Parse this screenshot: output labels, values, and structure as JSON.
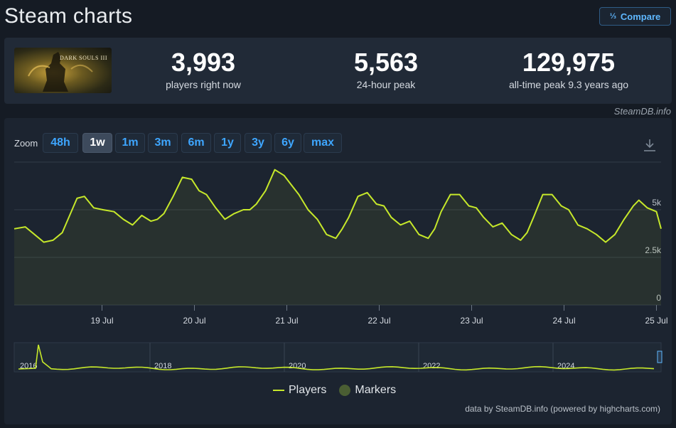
{
  "header": {
    "title": "Steam charts",
    "compare_label": "Compare",
    "compare_icon": "fraction-icon"
  },
  "stats": {
    "game_title": "DARK SOULS III",
    "current": {
      "value": "3,993",
      "label": "players right now"
    },
    "peak_24h": {
      "value": "5,563",
      "label": "24-hour peak"
    },
    "all_time": {
      "value": "129,975",
      "label": "all-time peak 9.3 years ago"
    }
  },
  "credit": "SteamDB.info",
  "zoom": {
    "label": "Zoom",
    "options": [
      "48h",
      "1w",
      "1m",
      "3m",
      "6m",
      "1y",
      "3y",
      "6y",
      "max"
    ],
    "active": "1w"
  },
  "legend": {
    "players": "Players",
    "markers": "Markers"
  },
  "data_credit": "data by SteamDB.info (powered by highcharts.com)",
  "chart_data": {
    "type": "line",
    "title": "",
    "y_ticks": [
      {
        "value": 0,
        "label": "0"
      },
      {
        "value": 2500,
        "label": "2.5k"
      },
      {
        "value": 5000,
        "label": "5k"
      }
    ],
    "ylim": [
      0,
      7500
    ],
    "x_ticks": [
      "19 Jul",
      "20 Jul",
      "21 Jul",
      "22 Jul",
      "23 Jul",
      "24 Jul",
      "25 Jul"
    ],
    "series": [
      {
        "name": "Players",
        "color": "#c6e82a",
        "x_days": [
          0.0,
          0.12,
          0.22,
          0.32,
          0.42,
          0.52,
          0.6,
          0.68,
          0.76,
          0.86,
          0.96,
          1.08,
          1.18,
          1.28,
          1.38,
          1.48,
          1.55,
          1.62,
          1.72,
          1.82,
          1.92,
          2.0,
          2.08,
          2.18,
          2.28,
          2.38,
          2.48,
          2.55,
          2.62,
          2.72,
          2.82,
          2.92,
          3.0,
          3.08,
          3.18,
          3.28,
          3.38,
          3.48,
          3.55,
          3.62,
          3.72,
          3.82,
          3.92,
          4.0,
          4.08,
          4.18,
          4.28,
          4.38,
          4.48,
          4.55,
          4.62,
          4.72,
          4.82,
          4.92,
          5.0,
          5.08,
          5.18,
          5.28,
          5.38,
          5.48,
          5.55,
          5.62,
          5.72,
          5.82,
          5.92,
          6.0,
          6.1,
          6.2,
          6.3,
          6.4,
          6.5,
          6.6,
          6.7,
          6.76,
          6.85,
          6.95,
          7.0
        ],
        "values": [
          4000,
          4100,
          3700,
          3300,
          3400,
          3800,
          4700,
          5600,
          5700,
          5100,
          5000,
          4900,
          4500,
          4200,
          4700,
          4400,
          4500,
          4800,
          5700,
          6700,
          6600,
          6000,
          5800,
          5100,
          4500,
          4800,
          5000,
          5000,
          5300,
          6000,
          7100,
          6800,
          6300,
          5800,
          5000,
          4500,
          3700,
          3500,
          4000,
          4600,
          5700,
          5900,
          5300,
          5200,
          4600,
          4200,
          4400,
          3700,
          3500,
          4000,
          4900,
          5800,
          5800,
          5200,
          5100,
          4600,
          4100,
          4300,
          3700,
          3400,
          3800,
          4600,
          5800,
          5800,
          5200,
          5000,
          4200,
          4000,
          3700,
          3300,
          3700,
          4500,
          5200,
          5500,
          5100,
          4900,
          4000
        ]
      }
    ],
    "navigator": {
      "year_labels": [
        "2016",
        "2018",
        "2020",
        "2022",
        "2024"
      ]
    }
  }
}
